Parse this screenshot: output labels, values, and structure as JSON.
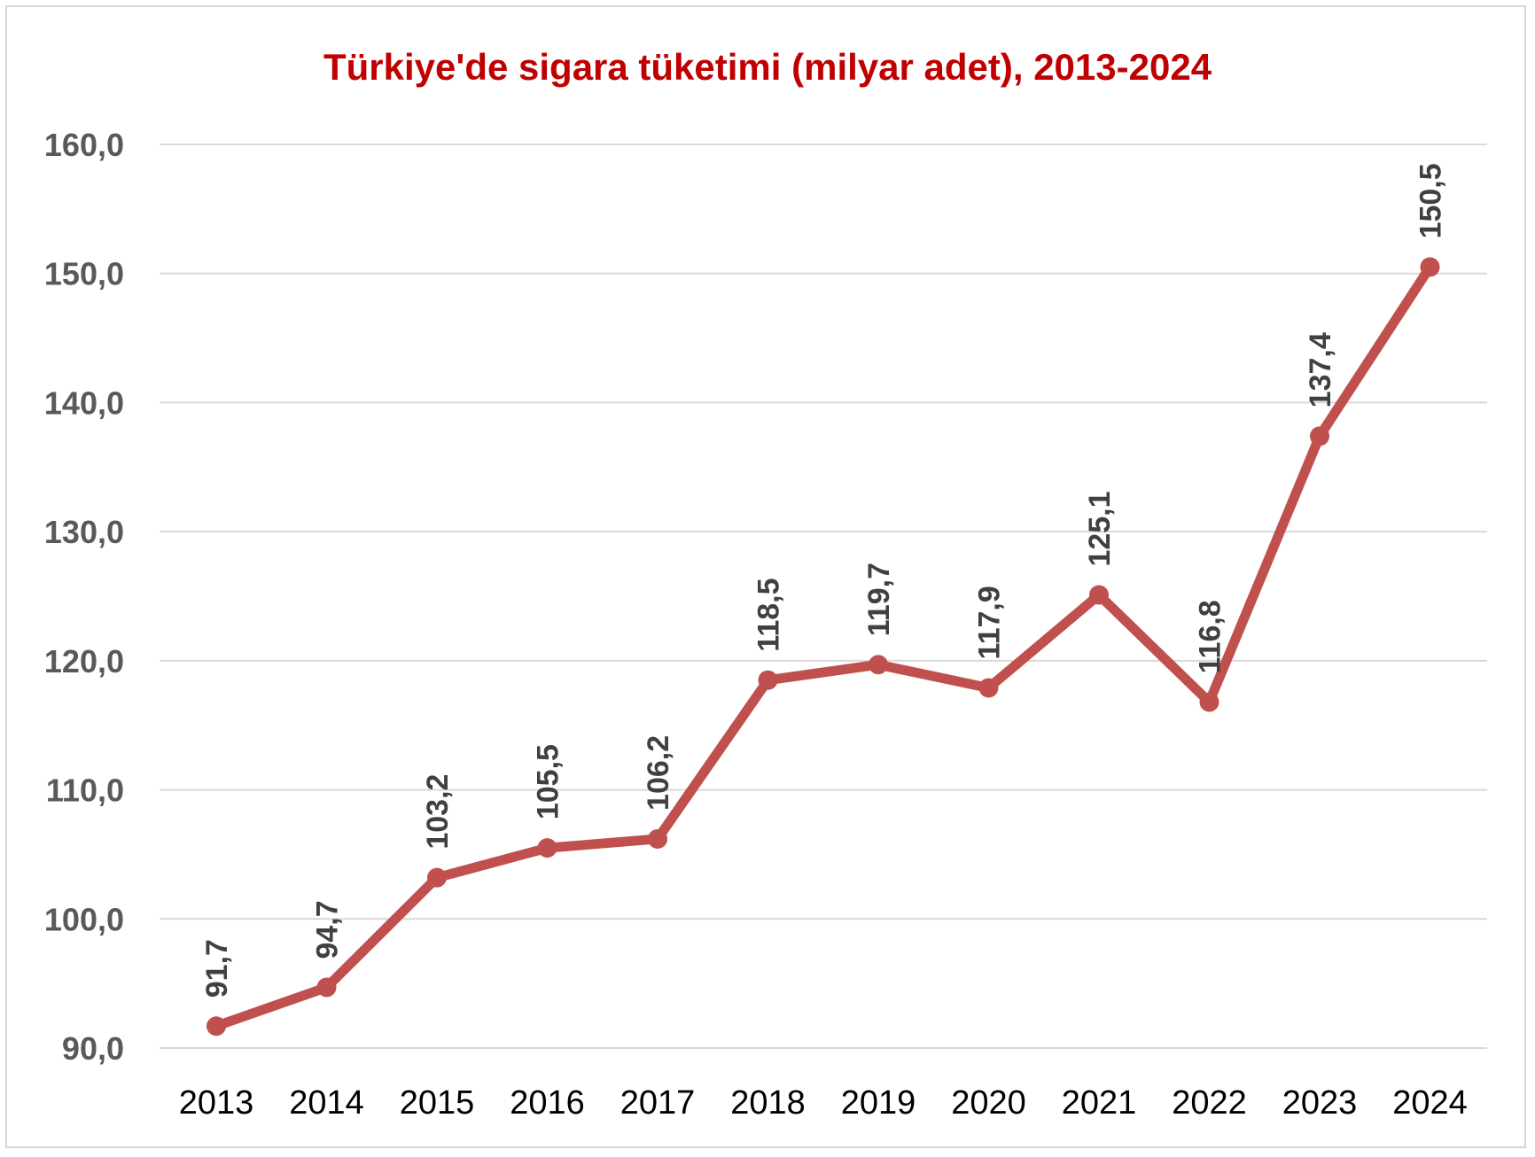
{
  "chart_data": {
    "type": "line",
    "title": "Türkiye'de sigara tüketimi (milyar adet), 2013-2024",
    "xlabel": "",
    "ylabel": "",
    "categories": [
      "2013",
      "2014",
      "2015",
      "2016",
      "2017",
      "2018",
      "2019",
      "2020",
      "2021",
      "2022",
      "2023",
      "2024"
    ],
    "series": [
      {
        "values": [
          91.7,
          94.7,
          103.2,
          105.5,
          106.2,
          118.5,
          119.7,
          117.9,
          125.1,
          116.8,
          137.4,
          150.5
        ],
        "data_labels": [
          "91,7",
          "94,7",
          "103,2",
          "105,5",
          "106,2",
          "118,5",
          "119,7",
          "117,9",
          "125,1",
          "116,8",
          "137,4",
          "150,5"
        ],
        "color": "#c0504d"
      }
    ],
    "ylim": [
      90,
      160
    ],
    "yticks": [
      90,
      100,
      110,
      120,
      130,
      140,
      150,
      160
    ],
    "ytick_labels": [
      "90,0",
      "100,0",
      "110,0",
      "120,0",
      "130,0",
      "140,0",
      "150,0",
      "160,0"
    ],
    "grid": true,
    "legend": "none",
    "colors": {
      "title": "#c00000",
      "line": "#c0504d",
      "gridline": "#d9d9d9",
      "ytick": "#595959",
      "data_label": "#404040"
    }
  }
}
